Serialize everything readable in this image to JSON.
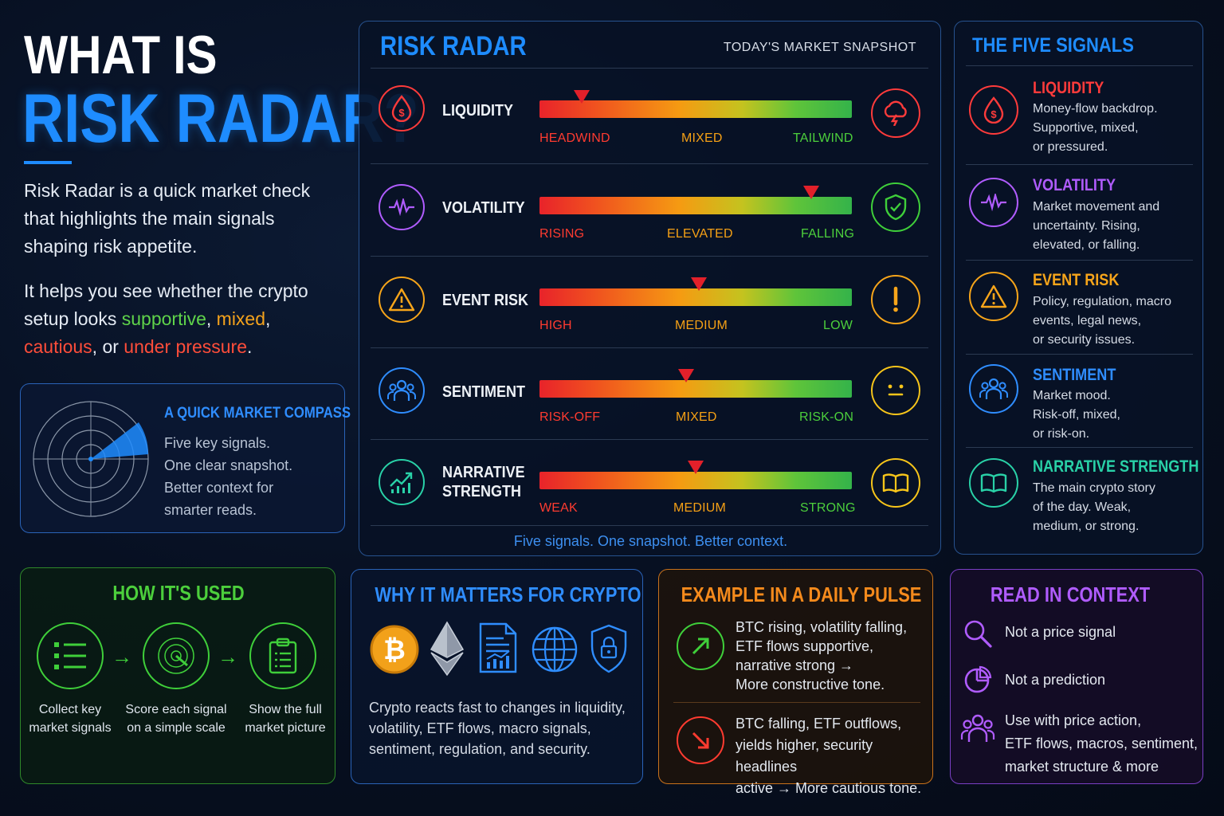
{
  "intro": {
    "title_line1": "WHAT IS",
    "title_line2": "RISK RADAR?",
    "para1": "Risk Radar is a quick market check that highlights the main signals shaping risk appetite.",
    "para2_prefix": "It helps you see whether the crypto setup looks ",
    "word_supportive": "supportive",
    "comma1": ", ",
    "word_mixed": "mixed",
    "comma2": ",",
    "word_cautious": "cautious",
    "or_text": ", or ",
    "word_pressure": "under pressure",
    "period": "."
  },
  "compass": {
    "title": "A QUICK MARKET COMPASS",
    "lines": [
      "Five key signals.",
      "One clear snapshot.",
      "Better context for",
      "smarter reads."
    ]
  },
  "radar": {
    "title": "RISK RADAR",
    "subtitle": "TODAY'S MARKET SNAPSHOT",
    "footer": "Five signals. One snapshot. Better context.",
    "rows": [
      {
        "label": "LIQUIDITY",
        "left": "HEADWIND",
        "mid": "MIXED",
        "right": "TAILWIND",
        "level": 0.135,
        "icon": "dollar-drop-icon",
        "status_icon": "storm-cloud-icon"
      },
      {
        "label": "VOLATILITY",
        "left": "RISING",
        "mid": "ELEVATED",
        "right": "FALLING",
        "level": 0.87,
        "icon": "pulse-wave-icon",
        "status_icon": "shield-check-icon"
      },
      {
        "label": "EVENT RISK",
        "left": "HIGH",
        "mid": "MEDIUM",
        "right": "LOW",
        "level": 0.51,
        "icon": "warning-triangle-icon",
        "status_icon": "exclamation-icon"
      },
      {
        "label": "SENTIMENT",
        "left": "RISK-OFF",
        "mid": "MIXED",
        "right": "RISK-ON",
        "level": 0.47,
        "icon": "people-icon",
        "status_icon": "neutral-face-icon"
      },
      {
        "label_line1": "NARRATIVE",
        "label_line2": "STRENGTH",
        "left": "WEAK",
        "mid": "MEDIUM",
        "right": "STRONG",
        "level": 0.5,
        "icon": "growth-chart-icon",
        "status_icon": "open-book-icon"
      }
    ]
  },
  "five_signals": {
    "title": "THE FIVE SIGNALS",
    "items": [
      {
        "name": "LIQUIDITY",
        "color": "#ff3b3b",
        "desc": [
          "Money-flow backdrop.",
          "Supportive, mixed,",
          "or pressured."
        ]
      },
      {
        "name": "VOLATILITY",
        "color": "#b05cff",
        "desc": [
          "Market movement and",
          "uncertainty. Rising,",
          "elevated, or falling."
        ]
      },
      {
        "name": "EVENT RISK",
        "color": "#f7a51a",
        "desc": [
          "Policy, regulation, macro",
          "events, legal news,",
          "or security issues."
        ]
      },
      {
        "name": "SENTIMENT",
        "color": "#2f8dff",
        "desc": [
          "Market mood.",
          "Risk-off, mixed,",
          "or risk-on."
        ]
      },
      {
        "name": "NARRATIVE STRENGTH",
        "color": "#29d1a7",
        "desc": [
          "The main crypto story",
          "of the day. Weak,",
          "medium, or strong."
        ]
      }
    ]
  },
  "how_used": {
    "title": "HOW IT'S USED",
    "steps": [
      {
        "line1": "Collect key",
        "line2": "market signals"
      },
      {
        "line1": "Score each signal",
        "line2": "on a simple scale"
      },
      {
        "line1": "Show the full",
        "line2": "market picture"
      }
    ]
  },
  "why": {
    "title": "WHY IT MATTERS FOR CRYPTO",
    "lines": [
      "Crypto reacts fast to changes in liquidity,",
      "volatility, ETF flows, macro signals,",
      "sentiment, regulation, and security."
    ]
  },
  "pulse": {
    "title": "EXAMPLE IN A DAILY PULSE",
    "up": [
      "BTC rising, volatility falling,",
      "ETF flows supportive,",
      "narrative strong →",
      "More constructive tone."
    ],
    "down": [
      "BTC falling, ETF outflows,",
      "yields higher, security headlines",
      "active → More cautious tone."
    ]
  },
  "context": {
    "title": "READ IN CONTEXT",
    "items": [
      "Not a price signal",
      "Not a prediction"
    ],
    "multi": [
      "Use with price action,",
      "ETF flows, macros, sentiment,",
      "market structure & more"
    ]
  }
}
